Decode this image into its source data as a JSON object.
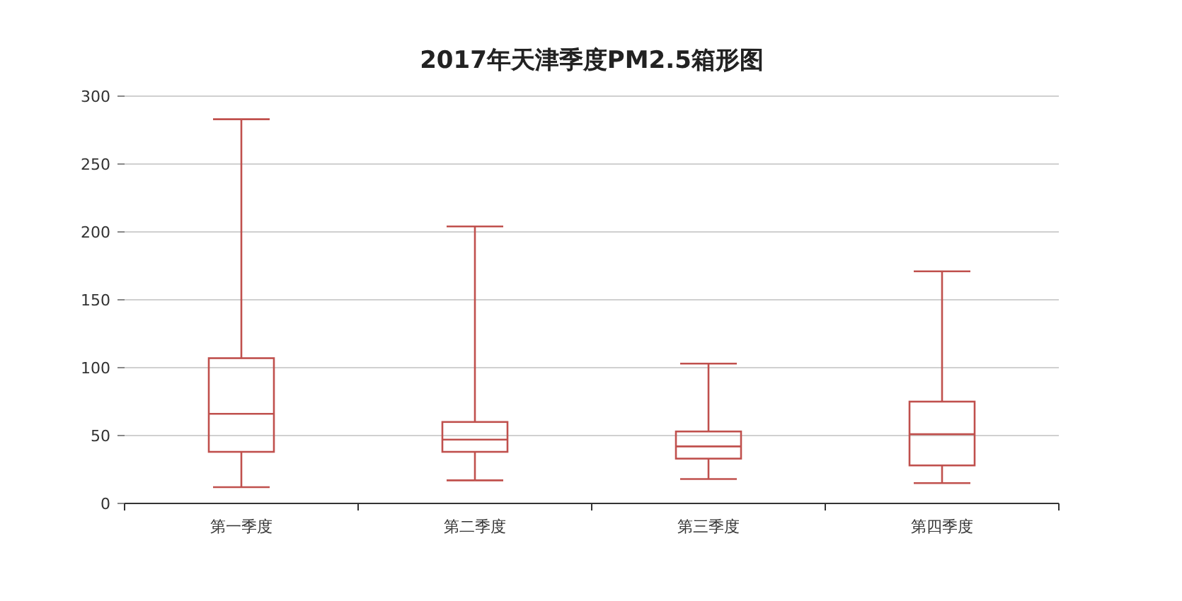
{
  "chart_data": {
    "type": "box",
    "title": "2017年天津季度PM2.5箱形图",
    "categories": [
      "第一季度",
      "第二季度",
      "第三季度",
      "第四季度"
    ],
    "color": "#c0504d",
    "boxes": [
      {
        "low": 12,
        "q1": 38,
        "median": 66,
        "q3": 107,
        "high": 283
      },
      {
        "low": 17,
        "q1": 38,
        "median": 47,
        "q3": 60,
        "high": 204
      },
      {
        "low": 18,
        "q1": 33,
        "median": 42,
        "q3": 53,
        "high": 103
      },
      {
        "low": 15,
        "q1": 28,
        "median": 51,
        "q3": 75,
        "high": 171
      }
    ],
    "ylim": [
      0,
      300
    ],
    "yticks": [
      0,
      50,
      100,
      150,
      200,
      250,
      300
    ],
    "grid": "y"
  }
}
